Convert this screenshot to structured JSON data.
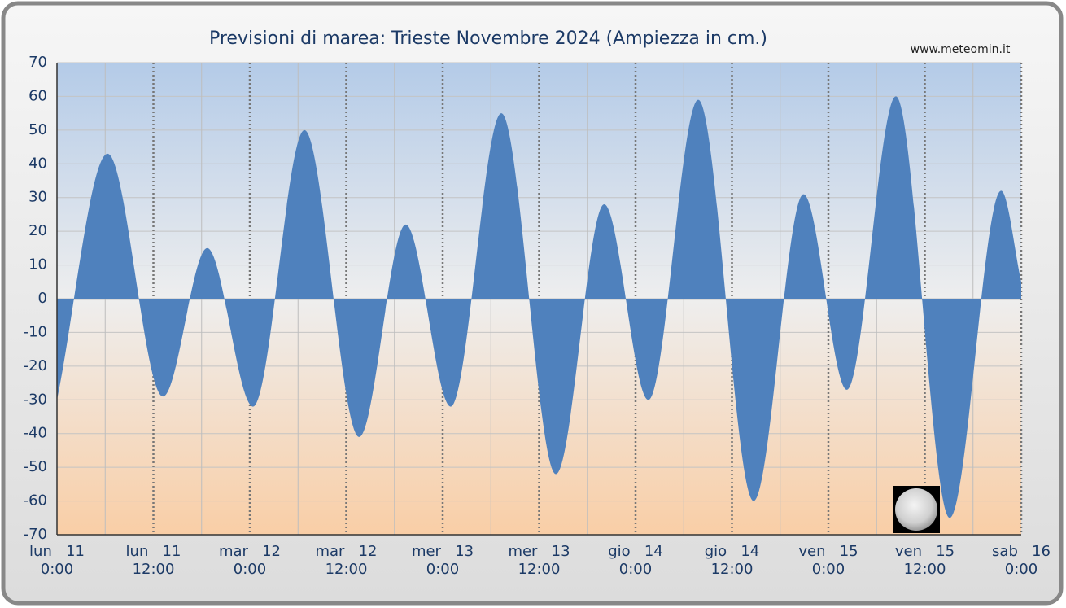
{
  "chart_data": {
    "type": "area",
    "title": "Previsioni di marea: Trieste Novembre 2024 (Ampiezza in cm.)",
    "source": "www.meteomin.it",
    "x": [
      0,
      6.3,
      13.2,
      18.7,
      24.4,
      30.8,
      37.6,
      43.4,
      49.0,
      55.3,
      62.1,
      68.1,
      73.6,
      79.8,
      86.7,
      92.9,
      98.3,
      104.4,
      111.1,
      117.5,
      120
    ],
    "values": [
      -30,
      43,
      -29,
      15,
      -32,
      50,
      -41,
      22,
      -32,
      55,
      -52,
      28,
      -30,
      59,
      -60,
      31,
      -27,
      60,
      -65,
      32,
      5
    ],
    "color": "#4f81bd",
    "xlim": [
      0,
      120
    ],
    "ylim": [
      -70,
      70
    ],
    "yticks": [
      70,
      60,
      50,
      40,
      30,
      20,
      10,
      0,
      -10,
      -20,
      -30,
      -40,
      -50,
      -60,
      -70
    ],
    "xticks": [
      {
        "value": 0,
        "label": [
          "lun   11",
          "0:00"
        ]
      },
      {
        "value": 12,
        "label": [
          "lun   11",
          "12:00"
        ]
      },
      {
        "value": 24,
        "label": [
          "mar   12",
          "0:00"
        ]
      },
      {
        "value": 36,
        "label": [
          "mar   12",
          "12:00"
        ]
      },
      {
        "value": 48,
        "label": [
          "mer   13",
          "0:00"
        ]
      },
      {
        "value": 60,
        "label": [
          "mer   13",
          "12:00"
        ]
      },
      {
        "value": 72,
        "label": [
          "gio   14",
          "0:00"
        ]
      },
      {
        "value": 84,
        "label": [
          "gio   14",
          "12:00"
        ]
      },
      {
        "value": 96,
        "label": [
          "ven   15",
          "0:00"
        ]
      },
      {
        "value": 108,
        "label": [
          "ven   15",
          "12:00"
        ]
      },
      {
        "value": 120,
        "label": [
          "sab   16",
          "0:00"
        ]
      }
    ],
    "xminor": [
      6,
      18,
      30,
      42,
      54,
      66,
      78,
      90,
      102,
      114
    ],
    "grid": true
  }
}
